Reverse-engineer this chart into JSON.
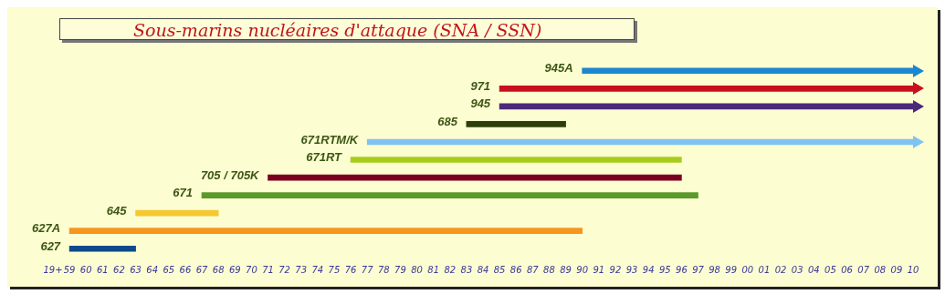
{
  "chart_data": {
    "type": "bar",
    "orientation": "horizontal",
    "title": "Sous-marins nucléaires d'attaque (SNA / SSN)",
    "categories": [
      "945A",
      "971",
      "945",
      "685",
      "671RTM/K",
      "671RT",
      "705 / 705K",
      "671",
      "645",
      "627A",
      "627"
    ],
    "base": [
      1990,
      1985,
      1985,
      1983,
      1977,
      1976,
      1971,
      1967,
      1963,
      1959,
      1959
    ],
    "values": [
      20,
      25,
      25,
      6,
      33,
      20,
      25,
      30,
      5,
      31,
      4
    ],
    "colors": [
      "#1a87d0",
      "#c8101e",
      "#4b2a7a",
      "#2e3d0c",
      "#7fc3f2",
      "#a8cc1c",
      "#7a0020",
      "#5a9a2a",
      "#f5c830",
      "#f5961e",
      "#0e4a8a"
    ],
    "xlim": [
      1958,
      2010
    ],
    "xticks": [
      {
        "value": 1958,
        "label": "19+"
      },
      {
        "value": 1959,
        "label": "59"
      },
      {
        "value": 1960,
        "label": "60"
      },
      {
        "value": 1961,
        "label": "61"
      },
      {
        "value": 1962,
        "label": "62"
      },
      {
        "value": 1963,
        "label": "63"
      },
      {
        "value": 1964,
        "label": "64"
      },
      {
        "value": 1965,
        "label": "65"
      },
      {
        "value": 1966,
        "label": "66"
      },
      {
        "value": 1967,
        "label": "67"
      },
      {
        "value": 1968,
        "label": "68"
      },
      {
        "value": 1969,
        "label": "69"
      },
      {
        "value": 1970,
        "label": "70"
      },
      {
        "value": 1971,
        "label": "71"
      },
      {
        "value": 1972,
        "label": "72"
      },
      {
        "value": 1973,
        "label": "73"
      },
      {
        "value": 1974,
        "label": "74"
      },
      {
        "value": 1975,
        "label": "75"
      },
      {
        "value": 1976,
        "label": "76"
      },
      {
        "value": 1977,
        "label": "77"
      },
      {
        "value": 1978,
        "label": "78"
      },
      {
        "value": 1979,
        "label": "79"
      },
      {
        "value": 1980,
        "label": "80"
      },
      {
        "value": 1981,
        "label": "81"
      },
      {
        "value": 1982,
        "label": "82"
      },
      {
        "value": 1983,
        "label": "83"
      },
      {
        "value": 1984,
        "label": "84"
      },
      {
        "value": 1985,
        "label": "85"
      },
      {
        "value": 1986,
        "label": "86"
      },
      {
        "value": 1987,
        "label": "87"
      },
      {
        "value": 1988,
        "label": "88"
      },
      {
        "value": 1989,
        "label": "89"
      },
      {
        "value": 1990,
        "label": "90"
      },
      {
        "value": 1991,
        "label": "91"
      },
      {
        "value": 1992,
        "label": "92"
      },
      {
        "value": 1993,
        "label": "93"
      },
      {
        "value": 1994,
        "label": "94"
      },
      {
        "value": 1995,
        "label": "95"
      },
      {
        "value": 1996,
        "label": "96"
      },
      {
        "value": 1997,
        "label": "97"
      },
      {
        "value": 1998,
        "label": "98"
      },
      {
        "value": 1999,
        "label": "99"
      },
      {
        "value": 2000,
        "label": "00"
      },
      {
        "value": 2001,
        "label": "01"
      },
      {
        "value": 2002,
        "label": "02"
      },
      {
        "value": 2003,
        "label": "03"
      },
      {
        "value": 2004,
        "label": "04"
      },
      {
        "value": 2005,
        "label": "05"
      },
      {
        "value": 2006,
        "label": "06"
      },
      {
        "value": 2007,
        "label": "07"
      },
      {
        "value": 2008,
        "label": "08"
      },
      {
        "value": 2009,
        "label": "09"
      },
      {
        "value": 2010,
        "label": "10"
      }
    ],
    "grid": false,
    "legend": false
  }
}
